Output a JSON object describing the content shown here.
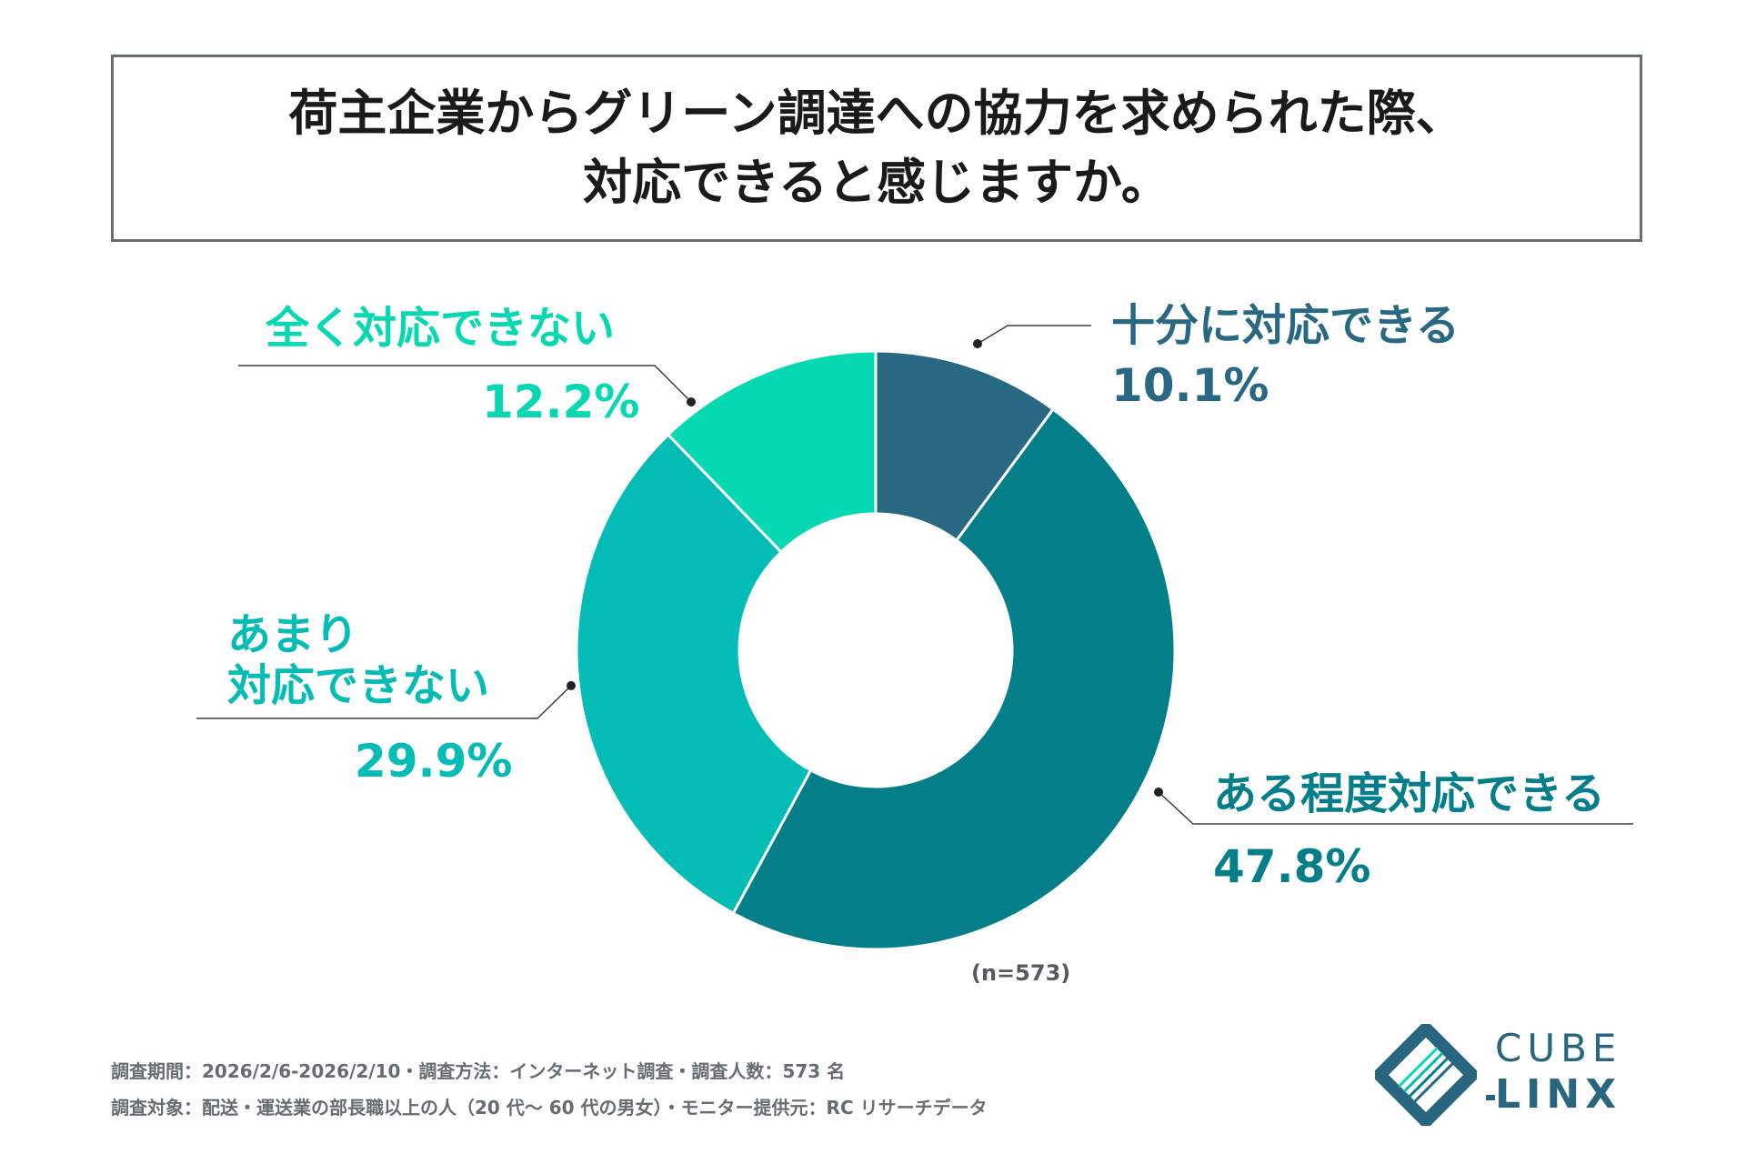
{
  "title": {
    "line1": "荷主企業からグリーン調達への協力を求められた際、",
    "line2": "対応できると感じますか。"
  },
  "chart_data": {
    "type": "pie",
    "variant": "donut",
    "title": "荷主企業からグリーン調達への協力を求められた際、対応できると感じますか。",
    "categories": [
      "十分に対応できる",
      "ある程度対応できる",
      "あまり対応できない",
      "全く対応できない"
    ],
    "values": [
      10.1,
      47.8,
      29.9,
      12.2
    ],
    "unit": "%",
    "colors": [
      "#286882",
      "#047f89",
      "#03bcb6",
      "#06d9b1"
    ],
    "labels": [
      {
        "lines": [
          "十分に対応できる"
        ],
        "pct": "10.1%"
      },
      {
        "lines": [
          "ある程度対応できる"
        ],
        "pct": "47.8%"
      },
      {
        "lines": [
          "あまり",
          "対応できない"
        ],
        "pct": "29.9%"
      },
      {
        "lines": [
          "全く対応できない"
        ],
        "pct": "12.2%"
      }
    ],
    "sample_note": "(n=573)"
  },
  "footnotes": {
    "line1": "調査期間：2026/2/6-2026/2/10・調査方法：インターネット調査・調査人数：573 名",
    "line2": "調査対象：配送・運送業の部長職以上の人（20 代〜 60 代の男女）・モニター提供元：RC リサーチデータ"
  },
  "logo": {
    "top": "CUBE",
    "bottom": "LINX",
    "color": "#286680"
  }
}
